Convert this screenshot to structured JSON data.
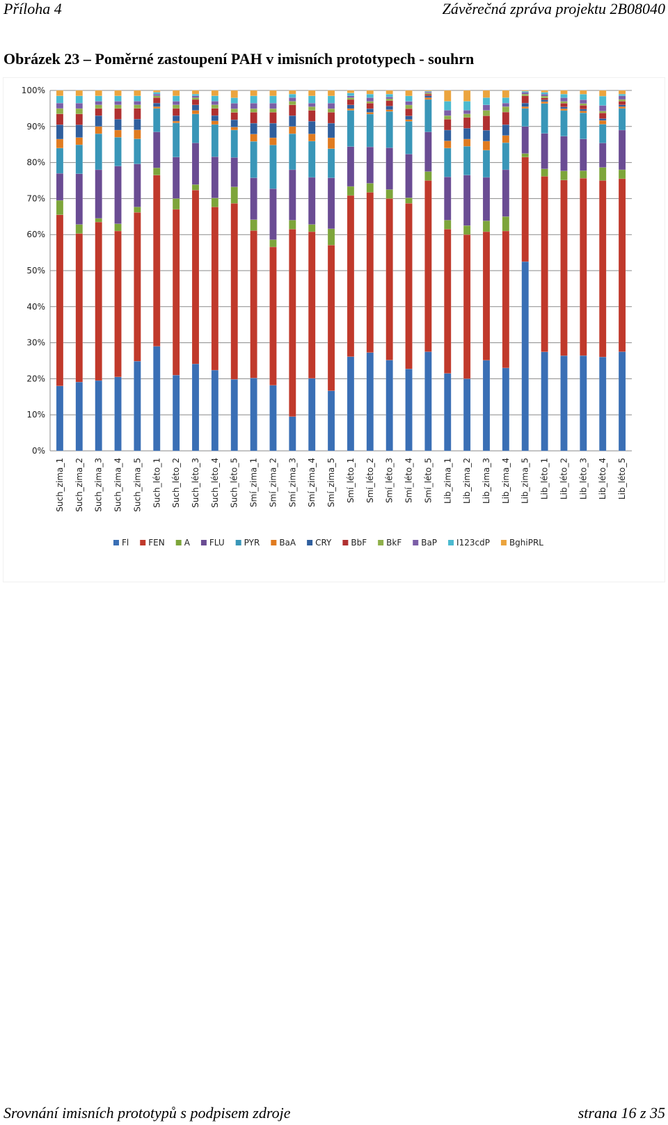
{
  "header": {
    "left": "Příloha 4",
    "right": "Závěrečná zpráva projektu 2B08040"
  },
  "figure": {
    "title": "Obrázek 23 – Poměrné zastoupení PAH v imisních prototypech - souhrn"
  },
  "footer": {
    "left": "Srovnání imisních prototypů s podpisem zdroje",
    "right": "strana 16 z 35"
  },
  "chart_data": {
    "type": "bar",
    "stacked": true,
    "percent": true,
    "title": "",
    "xlabel": "",
    "ylabel": "",
    "ylim": [
      0,
      100
    ],
    "yticks": [
      "0%",
      "10%",
      "20%",
      "30%",
      "40%",
      "50%",
      "60%",
      "70%",
      "80%",
      "90%",
      "100%"
    ],
    "grid": true,
    "legend_position": "bottom",
    "categories": [
      "Such_zima_1",
      "Such_zima_2",
      "Such_zima_3",
      "Such_zima_4",
      "Such_zima_5",
      "Such_léto_1",
      "Such_léto_2",
      "Such_léto_3",
      "Such_léto_4",
      "Such_léto_5",
      "Smí_zima_1",
      "Smí_zima_2",
      "Smí_zima_3",
      "Smí_zima_4",
      "Smí_zima_5",
      "Smí_léto_1",
      "Smí_léto_2",
      "Smí_léto_3",
      "Smí_léto_4",
      "Smí_léto_5",
      "Lib_zima_1",
      "Lib_zima_2",
      "Lib_zima_3",
      "Lib_zima_4",
      "Lib_zima_5",
      "Lib_léto_1",
      "Lib_léto_2",
      "Lib_léto_3",
      "Lib_léto_4",
      "Lib_léto_5"
    ],
    "series": [
      {
        "name": "Fl",
        "color": "#3a6fb5",
        "values": [
          18,
          19,
          19.5,
          20.5,
          25,
          29,
          21,
          24,
          22.5,
          19.5,
          20,
          18,
          9.5,
          20,
          16.5,
          26,
          27,
          25,
          22.5,
          27.5,
          21.5,
          20,
          25,
          23,
          52.5,
          26.5,
          26,
          25.5,
          25,
          27.5
        ]
      },
      {
        "name": "FEN",
        "color": "#c0392b",
        "values": [
          47.5,
          41,
          44,
          40.5,
          41.5,
          47.5,
          46,
          48,
          45.5,
          48,
          40.5,
          38,
          52,
          40.5,
          40,
          44.5,
          44,
          44.5,
          45.5,
          47.5,
          40,
          40,
          35.5,
          38,
          29,
          47,
          48,
          47.5,
          47,
          48
        ]
      },
      {
        "name": "A",
        "color": "#7da53a",
        "values": [
          4,
          2.5,
          1,
          2,
          1.5,
          2,
          3,
          1.5,
          2.5,
          4.5,
          3,
          2,
          2.5,
          2,
          4.5,
          2.5,
          2.5,
          2.5,
          1.5,
          2.5,
          2.5,
          2.5,
          3,
          4,
          1,
          2,
          2.5,
          2,
          3.5,
          2.5
        ]
      },
      {
        "name": "FLU",
        "color": "#6a4c93",
        "values": [
          7.5,
          14,
          13.5,
          16,
          12,
          10,
          11.5,
          11.5,
          11.5,
          8,
          11.5,
          14,
          14,
          13,
          14,
          11,
          10,
          11.5,
          12,
          11,
          12,
          14,
          12,
          13,
          7.5,
          9.5,
          9.5,
          8.5,
          6.5,
          11
        ]
      },
      {
        "name": "PYR",
        "color": "#3996b8",
        "values": [
          7,
          8,
          10,
          8,
          7,
          6.5,
          9.5,
          8,
          9,
          7.5,
          10,
          12,
          10,
          10,
          8,
          10,
          9,
          10,
          9,
          9,
          8,
          8,
          7.5,
          7.5,
          5,
          8,
          7,
          7,
          5,
          6
        ]
      },
      {
        "name": "BaA",
        "color": "#e07b20",
        "values": [
          2.5,
          2,
          2,
          2,
          2.5,
          0.5,
          0.5,
          1,
          1,
          0.8,
          2,
          2,
          2,
          2,
          3,
          0.5,
          0.5,
          0.5,
          0.5,
          0.5,
          2,
          2,
          2.5,
          2,
          0.5,
          0.5,
          0.5,
          0.5,
          1,
          0.5
        ]
      },
      {
        "name": "CRY",
        "color": "#2f5f9e",
        "values": [
          4,
          3.5,
          3,
          3,
          3,
          1,
          1.5,
          1.5,
          1.5,
          2,
          3,
          4,
          3,
          3.5,
          4,
          1,
          1,
          1,
          1,
          0.5,
          3,
          3,
          3,
          3,
          1,
          0.5,
          0.5,
          0.5,
          0.5,
          0.5
        ]
      },
      {
        "name": "BbF",
        "color": "#b03030",
        "values": [
          3,
          3,
          2,
          3,
          3,
          1.5,
          2,
          1.5,
          2,
          2,
          3,
          3,
          3,
          3,
          3,
          1.5,
          1.5,
          1.5,
          2,
          0.5,
          3,
          3,
          4,
          3.5,
          2,
          0.5,
          1,
          1,
          1.5,
          1
        ]
      },
      {
        "name": "BkF",
        "color": "#8fb04a",
        "values": [
          1.5,
          1.5,
          1,
          1,
          1,
          0.5,
          1,
          0.5,
          1,
          1,
          1,
          1,
          1,
          1,
          1,
          0.5,
          0.5,
          0.5,
          1,
          0.3,
          1,
          1,
          1.5,
          1.5,
          0.5,
          0.5,
          0.5,
          0.5,
          0.5,
          0.5
        ]
      },
      {
        "name": "BaP",
        "color": "#7b5ea7",
        "values": [
          1.5,
          1.5,
          1,
          1,
          1,
          0.5,
          1,
          0.5,
          1,
          1.5,
          1.5,
          1.5,
          1,
          1,
          1.5,
          0.5,
          1,
          0.5,
          1,
          0.3,
          1.5,
          1,
          1.5,
          1,
          0.5,
          0.5,
          1,
          1,
          1.5,
          1
        ]
      },
      {
        "name": "I123cdP",
        "color": "#4bbad0",
        "values": [
          2,
          2,
          1.5,
          1.5,
          1.5,
          0.5,
          1.5,
          0.5,
          1.5,
          1.5,
          2,
          2,
          1,
          2,
          2,
          0.8,
          1,
          0.8,
          1.5,
          0.2,
          2.5,
          2.5,
          2,
          1.5,
          0.3,
          0.5,
          1,
          1.5,
          2.5,
          0.5
        ]
      },
      {
        "name": "BghiPRL",
        "color": "#eba43e",
        "values": [
          1.5,
          1.5,
          1.5,
          1.5,
          1.5,
          0.5,
          1.5,
          1,
          1.5,
          2,
          1.5,
          1.5,
          1,
          1.5,
          1.5,
          0.7,
          1,
          1,
          1.5,
          0.2,
          3,
          3,
          2,
          2,
          0.2,
          0.5,
          1,
          1,
          1.5,
          1
        ]
      }
    ]
  }
}
